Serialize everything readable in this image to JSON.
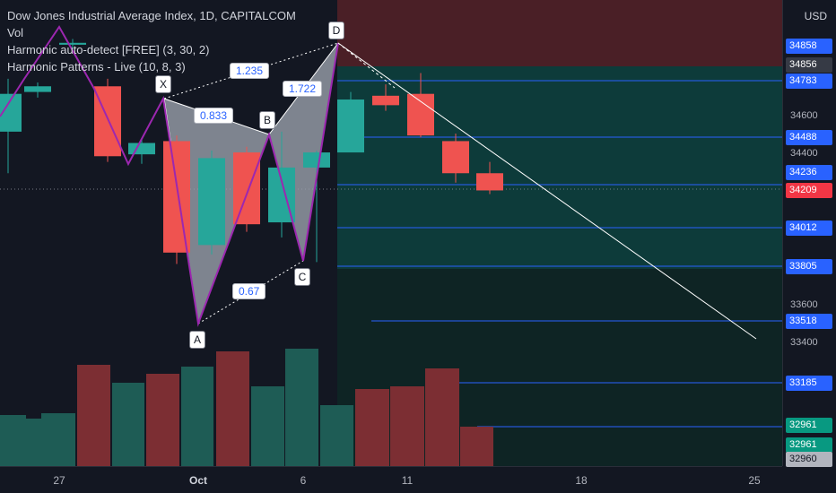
{
  "header": {
    "title": "Dow Jones Industrial Average Index, 1D, CAPITALCOM",
    "indicators": [
      "Vol",
      "Harmonic auto-detect [FREE] (3, 30, 2)",
      "Harmonic Patterns - Live (10, 8, 3)"
    ]
  },
  "currency": "USD",
  "pattern": {
    "points": [
      "X",
      "A",
      "B",
      "C",
      "D"
    ],
    "ratios": [
      "0.833",
      "1.235",
      "1.722",
      "0.67"
    ]
  },
  "price_axis": {
    "ticks": [
      "34600",
      "34400",
      "33600",
      "33400"
    ],
    "labels": [
      {
        "text": "34858",
        "price": 34858,
        "bg": "#2962ff"
      },
      {
        "text": "34856",
        "price": 34856,
        "bg": "#363a45"
      },
      {
        "text": "34783",
        "price": 34783,
        "bg": "#2962ff"
      },
      {
        "text": "34488",
        "price": 34488,
        "bg": "#2962ff"
      },
      {
        "text": "34236",
        "price": 34236,
        "bg": "#2962ff"
      },
      {
        "text": "34209",
        "price": 34209,
        "bg": "#f23645"
      },
      {
        "text": "34012",
        "price": 34012,
        "bg": "#2962ff"
      },
      {
        "text": "33805",
        "price": 33805,
        "bg": "#2962ff"
      },
      {
        "text": "33518",
        "price": 33518,
        "bg": "#2962ff"
      },
      {
        "text": "33185",
        "price": 33185,
        "bg": "#2962ff"
      },
      {
        "text": "32961",
        "price": 32961,
        "bg": "#089981"
      },
      {
        "text": "32961",
        "price": 32961,
        "bg": "#089981"
      },
      {
        "text": "32960",
        "price": 32960,
        "bg": "#b2b5be"
      }
    ]
  },
  "time_axis": [
    {
      "text": "27",
      "bold": false
    },
    {
      "text": "Oct",
      "bold": true
    },
    {
      "text": "6",
      "bold": false
    },
    {
      "text": "11",
      "bold": false
    },
    {
      "text": "18",
      "bold": false
    },
    {
      "text": "25",
      "bold": false
    }
  ],
  "colors": {
    "up": "#26a69a",
    "down": "#ef5350",
    "pattern_line": "#9c27b0",
    "level_line": "#2962ff"
  }
}
